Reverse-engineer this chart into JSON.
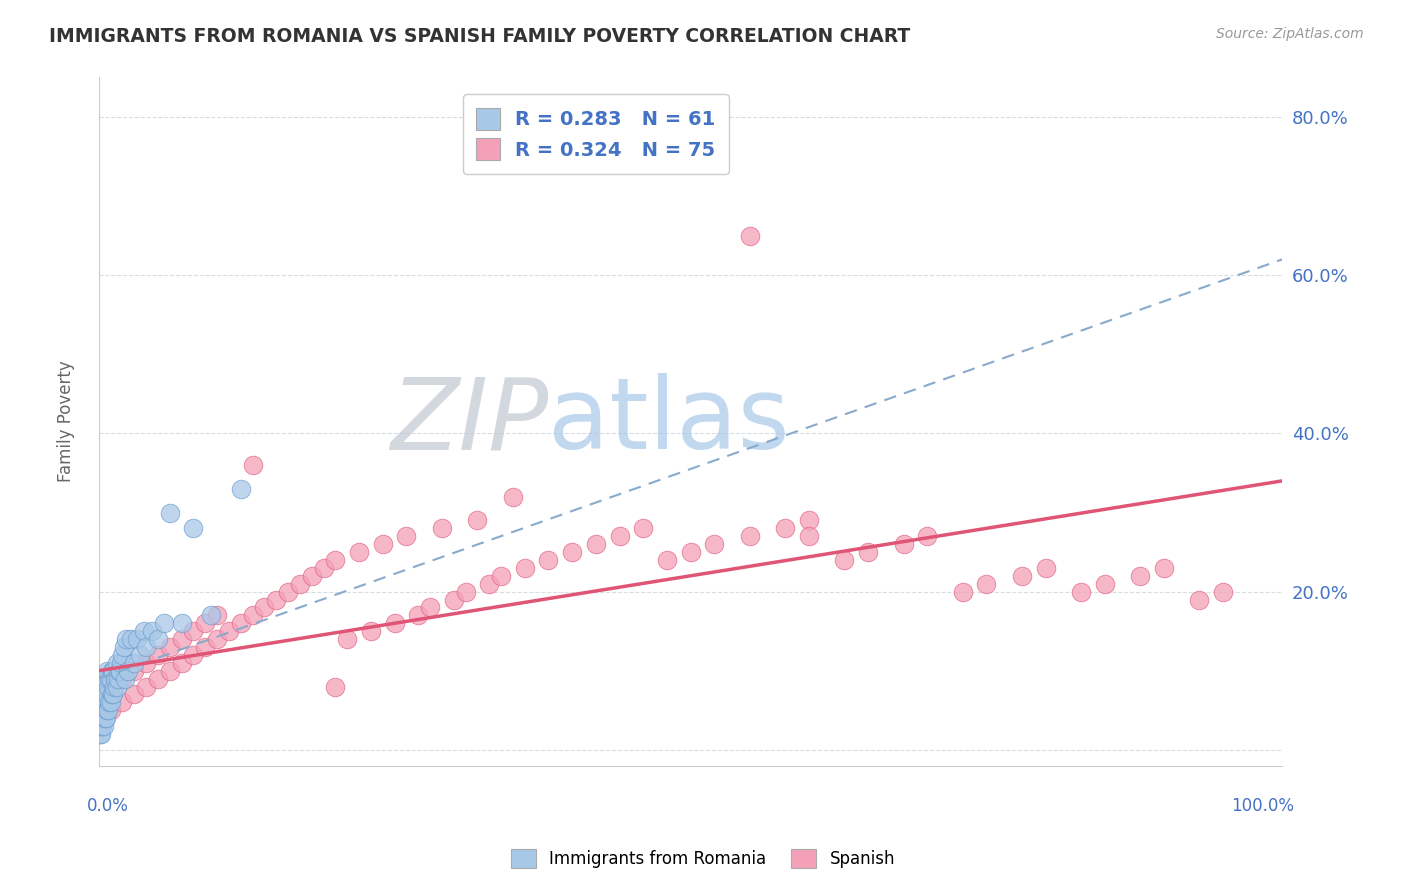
{
  "title": "IMMIGRANTS FROM ROMANIA VS SPANISH FAMILY POVERTY CORRELATION CHART",
  "source": "Source: ZipAtlas.com",
  "ylabel": "Family Poverty",
  "x_min": 0,
  "x_max": 1.0,
  "y_min": -0.02,
  "y_max": 0.85,
  "yticks": [
    0.0,
    0.2,
    0.4,
    0.6,
    0.8
  ],
  "ytick_labels": [
    "",
    "20.0%",
    "40.0%",
    "60.0%",
    "80.0%"
  ],
  "romania_color": "#a8c8e8",
  "romania_edge": "#6699cc",
  "spanish_color": "#f4a0b8",
  "spanish_edge": "#e06080",
  "romania_trend_color": "#88aacc",
  "spanish_trend_color": "#e05575",
  "watermark_zip_color": "#c8d0d8",
  "watermark_atlas_color": "#a8c8e8",
  "grid_color": "#d8dde2",
  "background_color": "#ffffff",
  "romania_x": [
    0.001,
    0.001,
    0.001,
    0.001,
    0.002,
    0.002,
    0.002,
    0.002,
    0.003,
    0.003,
    0.003,
    0.003,
    0.004,
    0.004,
    0.004,
    0.005,
    0.005,
    0.005,
    0.006,
    0.006,
    0.006,
    0.007,
    0.007,
    0.007,
    0.008,
    0.008,
    0.009,
    0.009,
    0.01,
    0.01,
    0.011,
    0.011,
    0.012,
    0.012,
    0.013,
    0.014,
    0.015,
    0.015,
    0.016,
    0.017,
    0.018,
    0.019,
    0.02,
    0.021,
    0.022,
    0.023,
    0.025,
    0.027,
    0.03,
    0.032,
    0.035,
    0.038,
    0.04,
    0.045,
    0.05,
    0.055,
    0.06,
    0.07,
    0.08,
    0.095,
    0.12
  ],
  "romania_y": [
    0.02,
    0.03,
    0.04,
    0.05,
    0.02,
    0.03,
    0.05,
    0.07,
    0.03,
    0.04,
    0.06,
    0.08,
    0.03,
    0.05,
    0.07,
    0.04,
    0.06,
    0.08,
    0.04,
    0.06,
    0.09,
    0.05,
    0.07,
    0.1,
    0.05,
    0.08,
    0.06,
    0.09,
    0.06,
    0.09,
    0.07,
    0.1,
    0.07,
    0.1,
    0.08,
    0.09,
    0.08,
    0.11,
    0.09,
    0.1,
    0.1,
    0.11,
    0.12,
    0.13,
    0.09,
    0.14,
    0.1,
    0.14,
    0.11,
    0.14,
    0.12,
    0.15,
    0.13,
    0.15,
    0.14,
    0.16,
    0.3,
    0.16,
    0.28,
    0.17,
    0.33
  ],
  "spanish_x": [
    0.01,
    0.01,
    0.02,
    0.02,
    0.03,
    0.03,
    0.04,
    0.04,
    0.05,
    0.05,
    0.06,
    0.06,
    0.07,
    0.07,
    0.08,
    0.08,
    0.09,
    0.09,
    0.1,
    0.1,
    0.11,
    0.12,
    0.13,
    0.14,
    0.15,
    0.16,
    0.17,
    0.18,
    0.19,
    0.2,
    0.21,
    0.22,
    0.23,
    0.24,
    0.25,
    0.26,
    0.27,
    0.28,
    0.29,
    0.3,
    0.31,
    0.32,
    0.33,
    0.34,
    0.36,
    0.38,
    0.4,
    0.42,
    0.44,
    0.46,
    0.48,
    0.5,
    0.52,
    0.55,
    0.58,
    0.6,
    0.63,
    0.65,
    0.68,
    0.7,
    0.73,
    0.75,
    0.78,
    0.8,
    0.83,
    0.85,
    0.88,
    0.9,
    0.93,
    0.95,
    0.13,
    0.35,
    0.6,
    0.2,
    0.55
  ],
  "spanish_y": [
    0.05,
    0.08,
    0.06,
    0.09,
    0.07,
    0.1,
    0.08,
    0.11,
    0.09,
    0.12,
    0.1,
    0.13,
    0.11,
    0.14,
    0.12,
    0.15,
    0.13,
    0.16,
    0.14,
    0.17,
    0.15,
    0.16,
    0.17,
    0.18,
    0.19,
    0.2,
    0.21,
    0.22,
    0.23,
    0.24,
    0.14,
    0.25,
    0.15,
    0.26,
    0.16,
    0.27,
    0.17,
    0.18,
    0.28,
    0.19,
    0.2,
    0.29,
    0.21,
    0.22,
    0.23,
    0.24,
    0.25,
    0.26,
    0.27,
    0.28,
    0.24,
    0.25,
    0.26,
    0.27,
    0.28,
    0.29,
    0.24,
    0.25,
    0.26,
    0.27,
    0.2,
    0.21,
    0.22,
    0.23,
    0.2,
    0.21,
    0.22,
    0.23,
    0.19,
    0.2,
    0.36,
    0.32,
    0.27,
    0.08,
    0.65
  ]
}
